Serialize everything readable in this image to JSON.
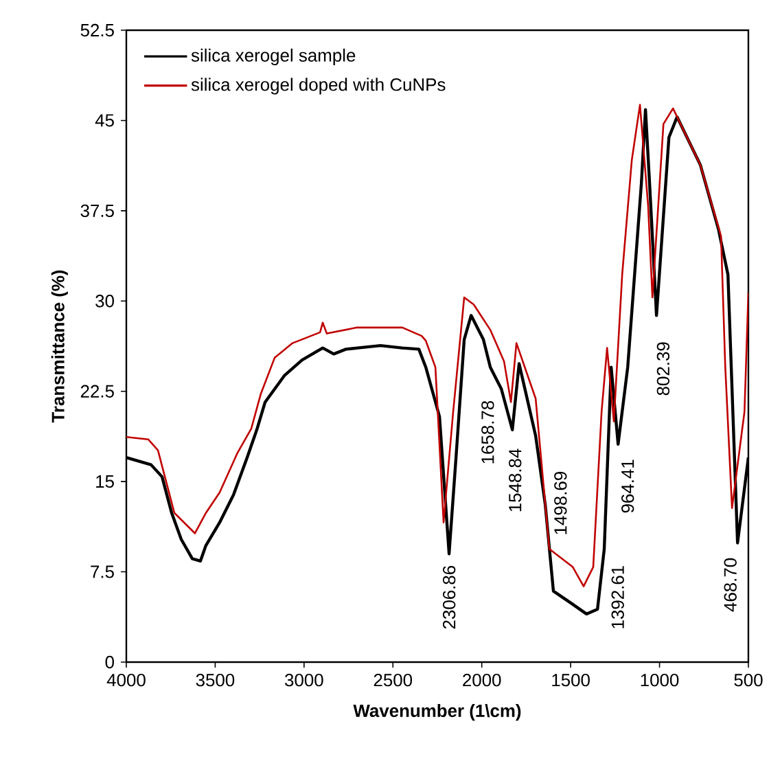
{
  "chart_data": {
    "type": "line",
    "xlabel": "Wavenumber (1\\cm)",
    "ylabel": "Transmittance (%)",
    "xlim": [
      4000,
      500
    ],
    "xticks": [
      4000,
      3500,
      3000,
      2500,
      2000,
      1500,
      1000,
      500
    ],
    "ylim": [
      0,
      52.5
    ],
    "yticks": [
      0,
      7.5,
      15,
      22.5,
      30,
      37.5,
      45,
      52.5
    ],
    "legend": "top left",
    "grid": false,
    "marker": "none",
    "line_style": "solid",
    "series": [
      {
        "name": "silica xerogel sample",
        "color": "#000000",
        "x": [
          4000,
          3861,
          3799,
          3745,
          3691,
          3629,
          3583,
          3552,
          3475,
          3397,
          3320,
          3266,
          3219,
          3111,
          3011,
          2895,
          2833,
          2764,
          2570,
          2447,
          2354,
          2315,
          2238,
          2184,
          2145,
          2099,
          2060,
          1991,
          1952,
          1890,
          1828,
          1790,
          1697,
          1643,
          1597,
          1488,
          1411,
          1349,
          1311,
          1272,
          1233,
          1179,
          1102,
          1079,
          1056,
          1017,
          947,
          901,
          770,
          669,
          615,
          561,
          500
        ],
        "values": [
          17.0,
          16.4,
          15.4,
          12.4,
          10.2,
          8.6,
          8.4,
          9.7,
          11.6,
          13.9,
          17.0,
          19.3,
          21.6,
          23.8,
          25.1,
          26.1,
          25.6,
          26.0,
          26.3,
          26.1,
          26.0,
          24.5,
          20.4,
          9.0,
          17.0,
          26.8,
          28.8,
          26.8,
          24.5,
          22.7,
          19.3,
          24.8,
          18.8,
          13.1,
          5.9,
          4.8,
          4.0,
          4.4,
          9.4,
          24.5,
          18.1,
          24.5,
          39.8,
          45.9,
          39.8,
          28.8,
          43.6,
          45.3,
          41.3,
          36.0,
          32.2,
          9.9,
          17.0
        ]
      },
      {
        "name": "silica xerogel doped with CuNPs",
        "color": "#c00000",
        "x": [
          4000,
          3876,
          3822,
          3730,
          3614,
          3552,
          3475,
          3374,
          3297,
          3243,
          3165,
          3065,
          2910,
          2895,
          2872,
          2702,
          2447,
          2338,
          2315,
          2261,
          2215,
          2161,
          2099,
          2045,
          1952,
          1875,
          1836,
          1805,
          1697,
          1620,
          1488,
          1427,
          1373,
          1326,
          1295,
          1257,
          1210,
          1156,
          1110,
          1064,
          1040,
          978,
          924,
          770,
          654,
          630,
          592,
          522,
          500
        ],
        "values": [
          18.7,
          18.5,
          17.6,
          12.4,
          10.7,
          12.4,
          14.1,
          17.4,
          19.4,
          22.3,
          25.3,
          26.5,
          27.4,
          28.2,
          27.3,
          27.8,
          27.8,
          27.1,
          26.7,
          24.5,
          11.6,
          20.8,
          30.3,
          29.7,
          27.6,
          25.0,
          21.6,
          26.5,
          21.9,
          9.4,
          7.9,
          6.3,
          7.9,
          20.8,
          26.1,
          20.0,
          32.2,
          41.7,
          46.3,
          37.9,
          30.3,
          44.7,
          46.0,
          41.3,
          35.4,
          24.5,
          12.8,
          20.8,
          30.7
        ]
      }
    ],
    "annotations": [
      "2306.86",
      "1658.78",
      "1548.84",
      "1498.69",
      "1392.61",
      "964.41",
      "802.39",
      "468.70"
    ]
  }
}
